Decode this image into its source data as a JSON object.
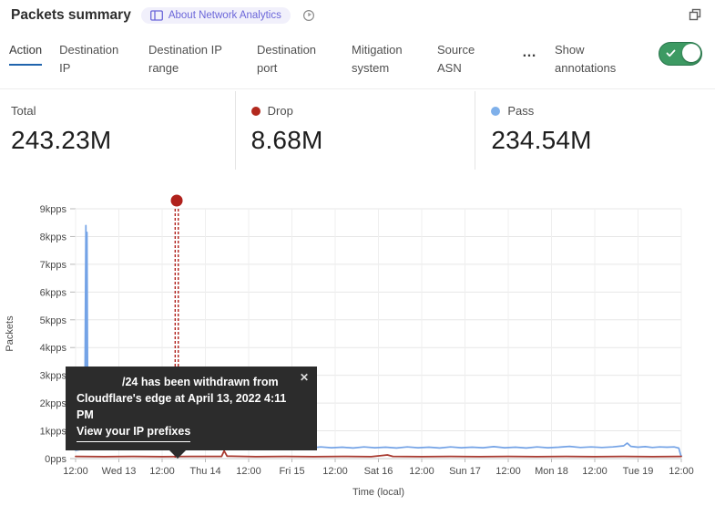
{
  "header": {
    "title": "Packets summary",
    "badge_label": "About Network Analytics"
  },
  "tabs": {
    "items": [
      {
        "label": "Action",
        "active": true
      },
      {
        "label": "Destination IP",
        "active": false
      },
      {
        "label": "Destination IP range",
        "active": false
      },
      {
        "label": "Destination port",
        "active": false
      },
      {
        "label": "Mitigation system",
        "active": false
      },
      {
        "label": "Source ASN",
        "active": false
      }
    ],
    "more_label": "…",
    "annotations_label": "Show annotations",
    "annotations_on": true,
    "toggle_color": "#3d9a63",
    "active_underline_color": "#2064ad"
  },
  "stats": [
    {
      "label": "Total",
      "value": "243.23M",
      "dot": null
    },
    {
      "label": "Drop",
      "value": "8.68M",
      "dot": "#b2281d"
    },
    {
      "label": "Pass",
      "value": "234.54M",
      "dot": "#7fb0ea"
    }
  ],
  "chart_data": {
    "type": "line",
    "xlabel": "Time (local)",
    "ylabel": "Packets",
    "x_ticks": [
      "12:00",
      "Wed 13",
      "12:00",
      "Thu 14",
      "12:00",
      "Fri 15",
      "12:00",
      "Sat 16",
      "12:00",
      "Sun 17",
      "12:00",
      "Mon 18",
      "12:00",
      "Tue 19",
      "12:00"
    ],
    "y_ticks": [
      "0pps",
      "1kpps",
      "2kpps",
      "3kpps",
      "4kpps",
      "5kpps",
      "6kpps",
      "7kpps",
      "8kpps",
      "9kpps"
    ],
    "x_range_hours": [
      0,
      168
    ],
    "ylim_kpps": [
      0,
      9
    ],
    "grid": true,
    "series": [
      {
        "name": "Pass",
        "color": "#74a3e6",
        "width": 1.7,
        "points": [
          [
            0,
            0.3
          ],
          [
            1,
            0.32
          ],
          [
            2,
            0.35
          ],
          [
            2.5,
            0.5
          ],
          [
            2.85,
            8.4
          ],
          [
            3.0,
            1.6
          ],
          [
            3.15,
            8.15
          ],
          [
            3.35,
            2.2
          ],
          [
            3.7,
            1.1
          ],
          [
            4.1,
            1.0
          ],
          [
            4.5,
            0.45
          ],
          [
            5.5,
            0.36
          ],
          [
            7,
            0.39
          ],
          [
            9,
            0.36
          ],
          [
            11,
            0.4
          ],
          [
            13,
            0.37
          ],
          [
            15.5,
            0.58
          ],
          [
            16.5,
            0.52
          ],
          [
            17.5,
            0.38
          ],
          [
            20,
            0.4
          ],
          [
            23,
            0.37
          ],
          [
            26,
            0.41
          ],
          [
            29,
            0.38
          ],
          [
            32,
            0.42
          ],
          [
            35,
            0.38
          ],
          [
            38,
            0.41
          ],
          [
            41,
            0.39
          ],
          [
            44,
            0.43
          ],
          [
            47,
            0.39
          ],
          [
            50,
            0.41
          ],
          [
            53,
            0.38
          ],
          [
            56,
            0.42
          ],
          [
            59,
            0.39
          ],
          [
            62,
            0.41
          ],
          [
            65,
            0.38
          ],
          [
            68,
            0.42
          ],
          [
            71,
            0.39
          ],
          [
            74,
            0.41
          ],
          [
            77,
            0.38
          ],
          [
            80,
            0.42
          ],
          [
            83,
            0.39
          ],
          [
            86,
            0.41
          ],
          [
            89,
            0.38
          ],
          [
            92,
            0.42
          ],
          [
            95,
            0.39
          ],
          [
            98,
            0.41
          ],
          [
            101,
            0.38
          ],
          [
            104,
            0.42
          ],
          [
            107,
            0.39
          ],
          [
            110,
            0.41
          ],
          [
            113,
            0.39
          ],
          [
            116,
            0.43
          ],
          [
            119,
            0.39
          ],
          [
            122,
            0.41
          ],
          [
            125,
            0.38
          ],
          [
            128,
            0.42
          ],
          [
            131,
            0.39
          ],
          [
            134,
            0.41
          ],
          [
            137,
            0.44
          ],
          [
            140,
            0.4
          ],
          [
            143,
            0.42
          ],
          [
            146,
            0.4
          ],
          [
            149,
            0.42
          ],
          [
            152,
            0.46
          ],
          [
            153,
            0.56
          ],
          [
            154,
            0.44
          ],
          [
            156,
            0.41
          ],
          [
            158,
            0.43
          ],
          [
            160,
            0.4
          ],
          [
            162,
            0.42
          ],
          [
            164,
            0.41
          ],
          [
            166,
            0.42
          ],
          [
            167.3,
            0.38
          ],
          [
            167.8,
            0.14
          ],
          [
            168,
            0.1
          ]
        ]
      },
      {
        "name": "Drop",
        "color": "#a8392f",
        "width": 1.8,
        "points": [
          [
            0,
            0.08
          ],
          [
            8,
            0.07
          ],
          [
            16,
            0.08
          ],
          [
            24,
            0.07
          ],
          [
            32,
            0.08
          ],
          [
            40.5,
            0.08
          ],
          [
            41.2,
            0.28
          ],
          [
            42,
            0.09
          ],
          [
            50,
            0.07
          ],
          [
            58,
            0.08
          ],
          [
            66,
            0.07
          ],
          [
            74,
            0.08
          ],
          [
            82,
            0.07
          ],
          [
            86.5,
            0.13
          ],
          [
            88,
            0.08
          ],
          [
            96,
            0.07
          ],
          [
            104,
            0.08
          ],
          [
            112,
            0.07
          ],
          [
            120,
            0.08
          ],
          [
            128,
            0.07
          ],
          [
            136,
            0.08
          ],
          [
            144,
            0.07
          ],
          [
            152,
            0.08
          ],
          [
            160,
            0.07
          ],
          [
            168,
            0.08
          ]
        ]
      }
    ],
    "annotation": {
      "x_hours": 28.05,
      "color": "#b0211c",
      "tooltip": {
        "line1": "/24 has been withdrawn from",
        "line2": "Cloudflare's edge at April 13, 2022 4:11 PM",
        "link": "View your IP prefixes",
        "close": "✕"
      }
    }
  }
}
